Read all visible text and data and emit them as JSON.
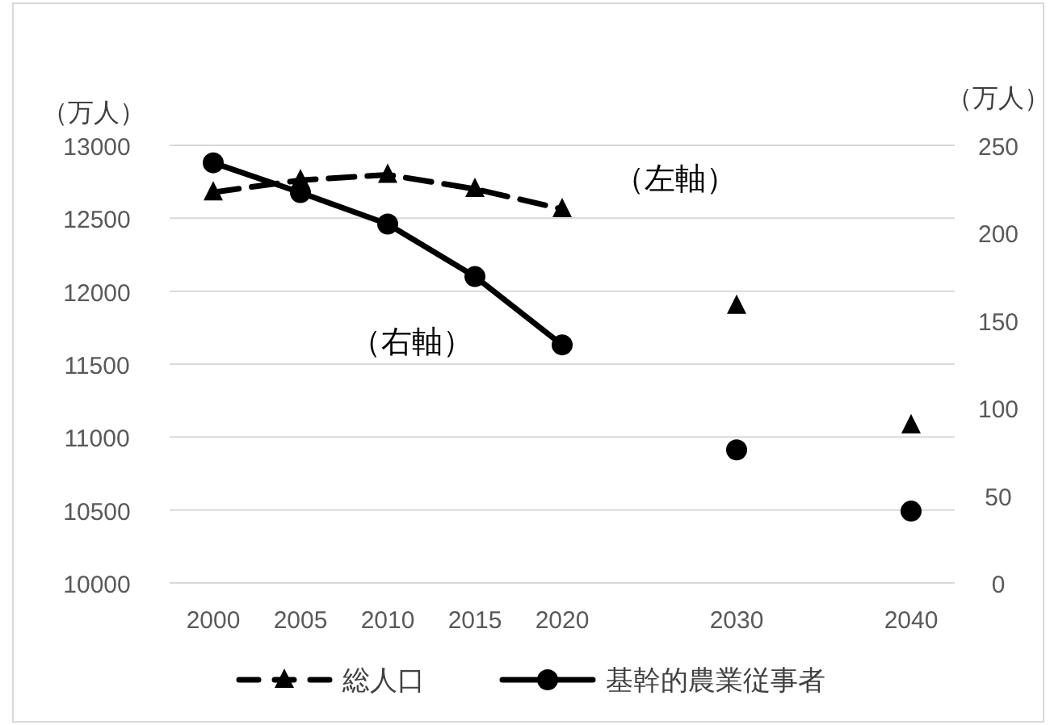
{
  "chart_data": {
    "type": "line",
    "ylabel": "（万人）",
    "y2label": "（万人）",
    "categories": [
      "2000",
      "2005",
      "2010",
      "2015",
      "2020",
      null,
      "2030",
      null,
      "2040"
    ],
    "series": [
      {
        "name": "総人口",
        "color": "#000000",
        "line_style": "dashed",
        "marker": "triangle",
        "values": [
          12678,
          12761,
          12798,
          12701,
          12563,
          null,
          11900,
          null,
          11081
        ]
      },
      {
        "name": "基幹的農業従事者",
        "color": "#000000",
        "line_style": "solid",
        "marker": "circle",
        "axis": "y2",
        "values": [
          240,
          223,
          205,
          175,
          136,
          null,
          76,
          null,
          41
        ]
      }
    ],
    "ylim": [
      10000,
      13000
    ],
    "yticks": [
      10000,
      10500,
      11000,
      11500,
      12000,
      12500,
      13000
    ],
    "y2lim": [
      0,
      250
    ],
    "y2ticks": [
      0,
      50,
      100,
      150,
      200,
      250
    ],
    "grid": "y",
    "legend": "bottom",
    "annotations": [
      "（左軸）",
      "（右軸）"
    ]
  }
}
